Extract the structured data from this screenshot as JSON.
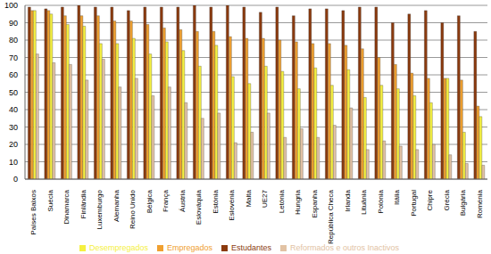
{
  "chart_data": {
    "type": "bar",
    "categories": [
      "Países Baixos",
      "Suécia",
      "Dinamarca",
      "Finlândia",
      "Luxemburgo",
      "Alemanha",
      "Reino Unido",
      "Bélgica",
      "França",
      "Áustria",
      "Eslováquia",
      "Estónia",
      "Eslovénia",
      "Malta",
      "UE27",
      "Letónia",
      "Hungria",
      "Espanha",
      "República Checa",
      "Irlanda",
      "Lituânia",
      "Polónia",
      "Itália",
      "Portugal",
      "Chipre",
      "Grécia",
      "Bulgária",
      "Roménia"
    ],
    "series": [
      {
        "name": "Estudantes",
        "color": "#8B3A0E",
        "values": [
          99,
          98,
          99,
          100,
          99,
          99,
          97,
          99,
          99,
          99,
          100,
          99,
          100,
          99,
          96,
          99,
          94,
          98,
          98,
          97,
          99,
          99,
          90,
          95,
          97,
          90,
          94,
          85
        ]
      },
      {
        "name": "Empregados",
        "color": "#F0A030",
        "values": [
          97,
          97,
          94,
          94,
          94,
          91,
          91,
          89,
          87,
          86,
          85,
          85,
          82,
          81,
          81,
          80,
          79,
          78,
          78,
          77,
          75,
          70,
          66,
          61,
          58,
          58,
          57,
          42
        ]
      },
      {
        "name": "Desempregados",
        "color": "#F5F040",
        "values": [
          97,
          95,
          89,
          88,
          78,
          78,
          81,
          72,
          79,
          74,
          65,
          77,
          59,
          55,
          65,
          62,
          52,
          64,
          54,
          63,
          47,
          54,
          52,
          48,
          44,
          58,
          27,
          36
        ]
      },
      {
        "name": "Reformados e outros Inactivos",
        "color": "#E2C2A4",
        "values": [
          72,
          67,
          66,
          57,
          69,
          53,
          58,
          48,
          53,
          44,
          35,
          38,
          21,
          27,
          38,
          24,
          29,
          24,
          31,
          41,
          17,
          22,
          19,
          17,
          20,
          14,
          9,
          8
        ]
      }
    ],
    "ylim": [
      0,
      100
    ],
    "yticks": [
      0,
      10,
      20,
      30,
      40,
      50,
      60,
      70,
      80,
      90,
      100
    ],
    "grid": true,
    "legend": "bottom"
  }
}
